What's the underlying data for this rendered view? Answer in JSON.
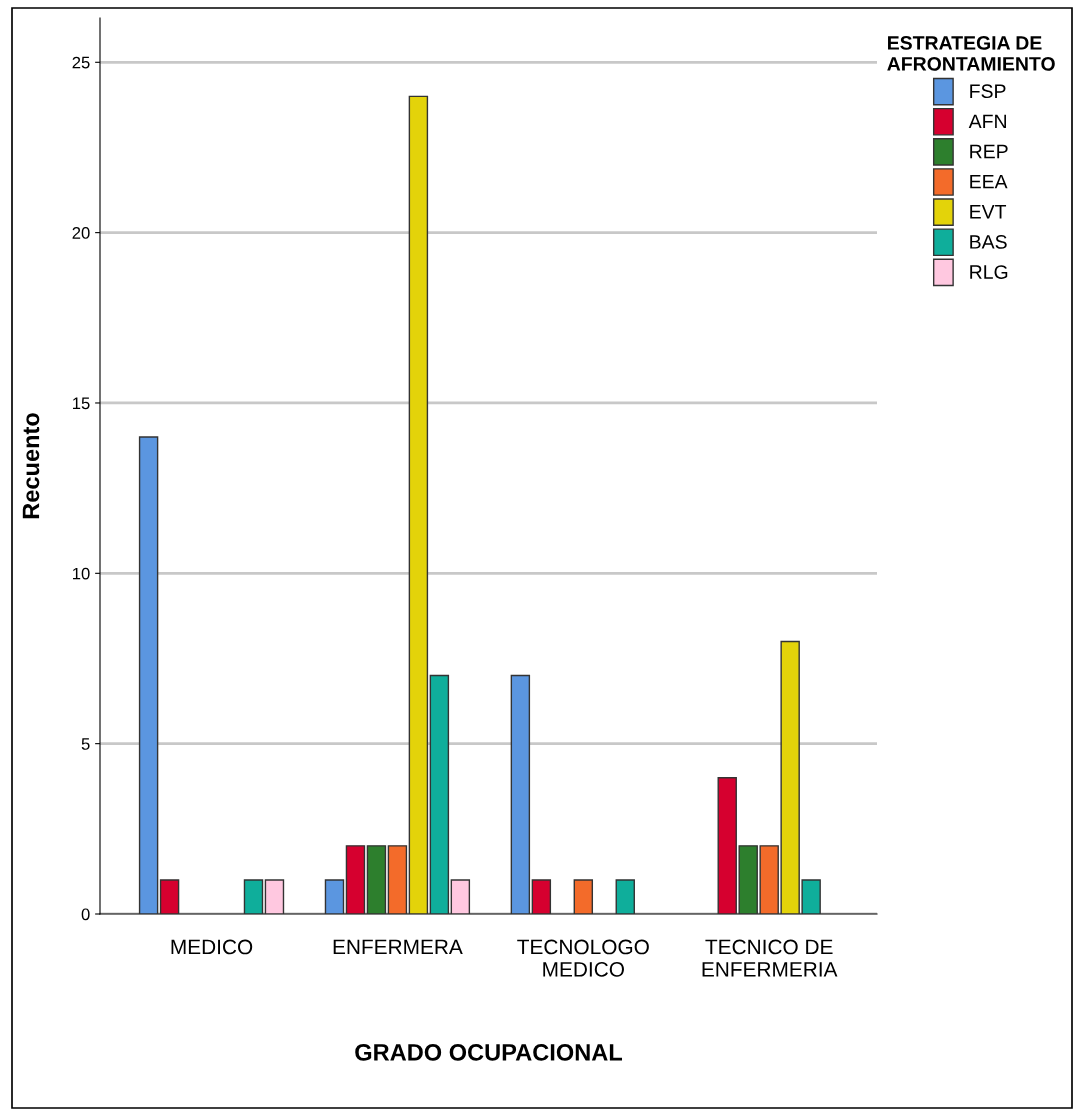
{
  "chart_data": {
    "type": "bar",
    "xlabel": "GRADO OCUPACIONAL",
    "ylabel": "Recuento",
    "legend_title": "ESTRATEGIA DE\nAFRONTAMIENTO",
    "categories": [
      "MEDICO",
      "ENFERMERA",
      "TECNOLOGO\nMEDICO",
      "TECNICO DE\nENFERMERIA"
    ],
    "series": [
      {
        "name": "FSP",
        "color": "#5b96e0",
        "values": [
          14,
          1,
          7,
          null
        ]
      },
      {
        "name": "AFN",
        "color": "#d6002f",
        "values": [
          1,
          2,
          1,
          4
        ]
      },
      {
        "name": "REP",
        "color": "#2d7f2d",
        "values": [
          null,
          2,
          null,
          2
        ]
      },
      {
        "name": "EEA",
        "color": "#f36b2a",
        "values": [
          null,
          2,
          1,
          2
        ]
      },
      {
        "name": "EVT",
        "color": "#e3d30a",
        "values": [
          null,
          24,
          null,
          8
        ]
      },
      {
        "name": "BAS",
        "color": "#0fae9b",
        "values": [
          1,
          7,
          1,
          1
        ]
      },
      {
        "name": "RLG",
        "color": "#ffc8e0",
        "values": [
          1,
          1,
          null,
          null
        ]
      }
    ],
    "ylim": [
      0,
      26.3
    ],
    "yticks": [
      0,
      5,
      10,
      15,
      20,
      25
    ],
    "grid": "y",
    "legend": "top right"
  }
}
